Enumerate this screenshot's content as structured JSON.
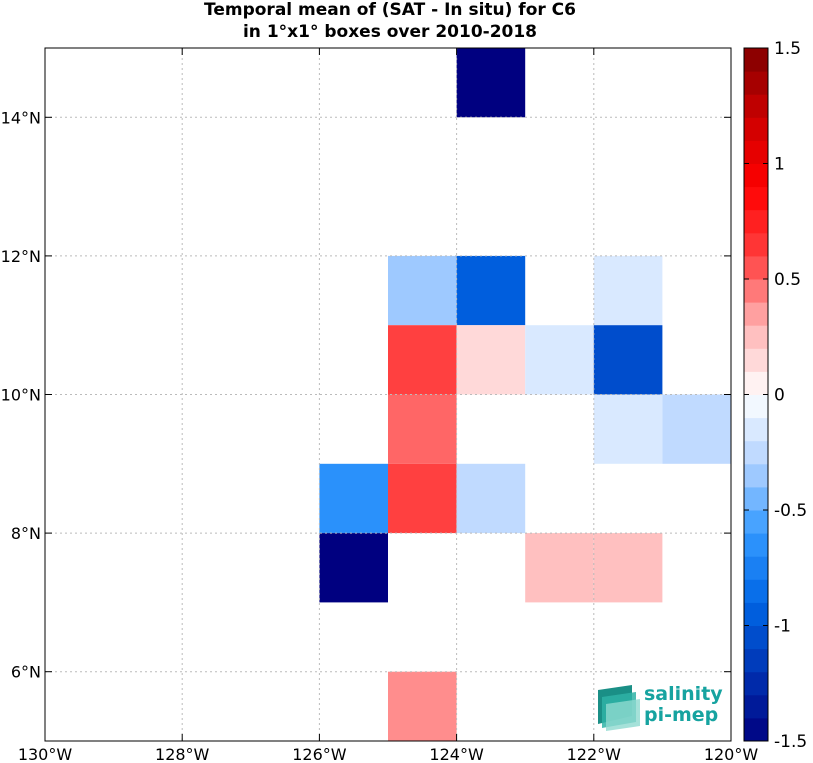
{
  "chart_data": {
    "type": "heatmap",
    "title": "Temporal mean of (SAT - In situ) for C6",
    "subtitle": "in 1°x1° boxes over 2010-2018",
    "xlim": [
      -130,
      -120
    ],
    "ylim": [
      5,
      15
    ],
    "x_ticks": [
      {
        "value": -130,
        "label": "130°W"
      },
      {
        "value": -128,
        "label": "128°W"
      },
      {
        "value": -126,
        "label": "126°W"
      },
      {
        "value": -124,
        "label": "124°W"
      },
      {
        "value": -122,
        "label": "122°W"
      },
      {
        "value": -120,
        "label": "120°W"
      }
    ],
    "y_ticks": [
      {
        "value": 6,
        "label": "6°N"
      },
      {
        "value": 8,
        "label": "8°N"
      },
      {
        "value": 10,
        "label": "10°N"
      },
      {
        "value": 12,
        "label": "12°N"
      },
      {
        "value": 14,
        "label": "14°N"
      }
    ],
    "grid": true,
    "colorbar": {
      "min": -1.5,
      "max": 1.5,
      "levels": 30,
      "placement": "right",
      "ticks": [
        {
          "value": 1.5,
          "label": "1.5"
        },
        {
          "value": 1,
          "label": "1"
        },
        {
          "value": 0.5,
          "label": "0.5"
        },
        {
          "value": 0,
          "label": "0"
        },
        {
          "value": -0.5,
          "label": "-0.5"
        },
        {
          "value": -1,
          "label": "-1"
        },
        {
          "value": -1.5,
          "label": "-1.5"
        }
      ]
    },
    "cells": [
      {
        "lon": -124,
        "lat": 14,
        "value": -1.5
      },
      {
        "lon": -125,
        "lat": 11,
        "value": -0.35
      },
      {
        "lon": -124,
        "lat": 11,
        "value": -0.95
      },
      {
        "lon": -122,
        "lat": 11,
        "value": -0.15
      },
      {
        "lon": -125,
        "lat": 10,
        "value": 0.6
      },
      {
        "lon": -124,
        "lat": 10,
        "value": 0.15
      },
      {
        "lon": -123,
        "lat": 10,
        "value": -0.15
      },
      {
        "lon": -122,
        "lat": 10,
        "value": -1.05
      },
      {
        "lon": -125,
        "lat": 9,
        "value": 0.5
      },
      {
        "lon": -122,
        "lat": 9,
        "value": -0.15
      },
      {
        "lon": -121,
        "lat": 9,
        "value": -0.25
      },
      {
        "lon": -126,
        "lat": 8,
        "value": -0.65
      },
      {
        "lon": -125,
        "lat": 8,
        "value": 0.6
      },
      {
        "lon": -124,
        "lat": 8,
        "value": -0.25
      },
      {
        "lon": -126,
        "lat": 7,
        "value": -1.5
      },
      {
        "lon": -123,
        "lat": 7,
        "value": 0.25
      },
      {
        "lon": -122,
        "lat": 7,
        "value": 0.25
      },
      {
        "lon": -125,
        "lat": 5,
        "value": 0.4
      }
    ]
  },
  "logo": {
    "line1": "salinity",
    "line2": "pi-mep",
    "color": "#16a3a0"
  }
}
